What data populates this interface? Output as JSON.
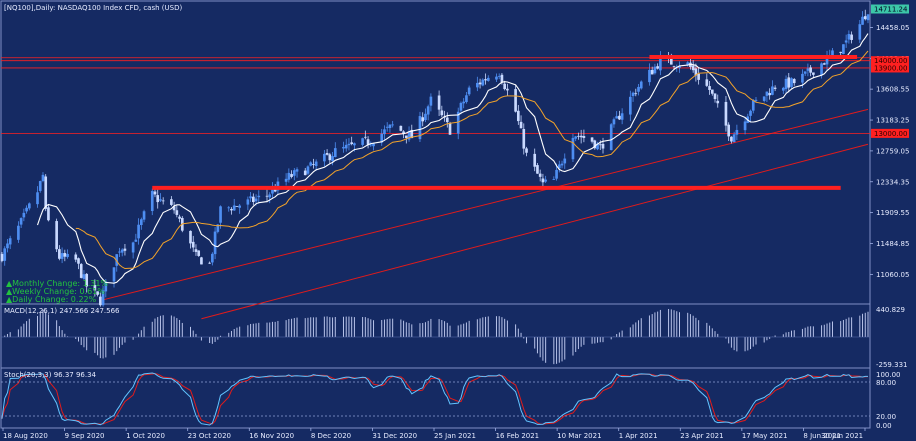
{
  "title": "[NQ100],Daily: NASDAQ100 Index CFD, cash (USD)",
  "colors": {
    "background": "#152a63",
    "bull": "#4e8ef2",
    "bear": "#c9d9ff",
    "ma_fast": "#ffffff",
    "ma_slow": "#f3a32a",
    "ma_long": "#e01b1b",
    "level": "#ff2020",
    "change_text": "#23c23f",
    "macd_hist": "#b8c3ea",
    "stoch_main": "#62c4ff",
    "stoch_signal": "#e01b1b"
  },
  "changes": {
    "monthly": "Monthly Change: 1.31%",
    "weekly": "Weekly Change: 0.61%",
    "daily": "Daily Change: 0.22%"
  },
  "macd": {
    "label": "MACD(12,26,1) 247.566 247.566",
    "max_label": "440.829",
    "min_label": "-259.331"
  },
  "stoch": {
    "label": "Stoch(20,3,3) 96.37 96.34",
    "tick_labels": [
      "100.00",
      "80.00",
      "20.00",
      "0.00"
    ]
  },
  "chart_data": {
    "type": "candlestick",
    "series_name": "NASDAQ100 Index CFD",
    "ylim": [
      10680,
      14780
    ],
    "y_ticks": [
      14458.05,
      14033.05,
      13608.55,
      13183.25,
      12759.05,
      12334.35,
      11909.55,
      11484.85,
      11060.05
    ],
    "y_tick_labels": [
      "14458.05",
      "14033.05",
      "13608.55",
      "13183.25",
      "12759.05",
      "12334.35",
      "11909.55",
      "11484.85",
      "11060.05"
    ],
    "x_labels": [
      "18 Aug 2020",
      "9 Sep 2020",
      "1 Oct 2020",
      "23 Oct 2020",
      "16 Nov 2020",
      "8 Dec 2020",
      "31 Dec 2020",
      "25 Jan 2021",
      "16 Feb 2021",
      "10 Mar 2021",
      "1 Apr 2021",
      "23 Apr 2021",
      "17 May 2021",
      "8 Jun 2021",
      "30 Jun 2021"
    ],
    "current_price": 14711.24,
    "current_price_label": "14711.24",
    "horizontal_levels": [
      {
        "value": 14000.0,
        "label": "14000.00"
      },
      {
        "value": 13900.0,
        "label": "13900.00"
      },
      {
        "value": 13000.0,
        "label": "13000.00"
      }
    ],
    "unlabeled_levels": [
      14040.0
    ],
    "support_zone": {
      "value": 12250,
      "from": "2020-10-12",
      "to": "2021-06-21"
    },
    "resistance_zone": {
      "value": 14050,
      "from": "2021-04-12",
      "to": "2021-06-27"
    },
    "trendlines": [
      {
        "from": [
          "2020-09-24",
          10710
        ],
        "to": [
          "2021-07-01",
          13330
        ]
      },
      {
        "from": [
          "2020-10-30",
          10450
        ],
        "to": [
          "2021-07-01",
          12850
        ]
      }
    ],
    "path": [
      [
        "2020-08-18",
        11320
      ],
      [
        "2020-08-24",
        11700
      ],
      [
        "2020-08-31",
        12200
      ],
      [
        "2020-09-02",
        12420
      ],
      [
        "2020-09-03",
        11900
      ],
      [
        "2020-09-08",
        11300
      ],
      [
        "2020-09-14",
        11250
      ],
      [
        "2020-09-18",
        10900
      ],
      [
        "2020-09-23",
        10700
      ],
      [
        "2020-09-30",
        11420
      ],
      [
        "2020-10-05",
        11500
      ],
      [
        "2020-10-12",
        12150
      ],
      [
        "2020-10-20",
        11950
      ],
      [
        "2020-10-28",
        11300
      ],
      [
        "2020-11-02",
        11200
      ],
      [
        "2020-11-06",
        11950
      ],
      [
        "2020-11-16",
        12050
      ],
      [
        "2020-11-23",
        12150
      ],
      [
        "2020-12-01",
        12400
      ],
      [
        "2020-12-10",
        12550
      ],
      [
        "2020-12-18",
        12750
      ],
      [
        "2020-12-31",
        12900
      ],
      [
        "2021-01-08",
        13100
      ],
      [
        "2021-01-15",
        12950
      ],
      [
        "2021-01-22",
        13450
      ],
      [
        "2021-01-29",
        13050
      ],
      [
        "2021-02-05",
        13600
      ],
      [
        "2021-02-12",
        13780
      ],
      [
        "2021-02-16",
        13850
      ],
      [
        "2021-02-22",
        13300
      ],
      [
        "2021-02-26",
        12700
      ],
      [
        "2021-03-04",
        12300
      ],
      [
        "2021-03-08",
        12350
      ],
      [
        "2021-03-15",
        13000
      ],
      [
        "2021-03-22",
        12900
      ],
      [
        "2021-03-25",
        12800
      ],
      [
        "2021-04-01",
        13250
      ],
      [
        "2021-04-07",
        13600
      ],
      [
        "2021-04-16",
        14000
      ],
      [
        "2021-04-26",
        13950
      ],
      [
        "2021-05-04",
        13600
      ],
      [
        "2021-05-10",
        13100
      ],
      [
        "2021-05-12",
        12950
      ],
      [
        "2021-05-20",
        13400
      ],
      [
        "2021-05-28",
        13650
      ],
      [
        "2021-06-04",
        13700
      ],
      [
        "2021-06-10",
        13850
      ],
      [
        "2021-06-17",
        14050
      ],
      [
        "2021-06-22",
        14200
      ],
      [
        "2021-06-28",
        14500
      ],
      [
        "2021-07-01",
        14711
      ]
    ]
  }
}
